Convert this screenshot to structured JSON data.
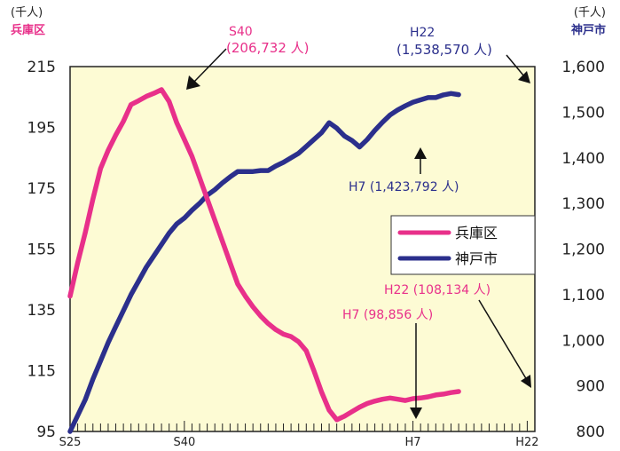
{
  "chart_data": {
    "type": "line",
    "left_axis": {
      "unit": "(千人)",
      "name": "兵庫区",
      "ticks": [
        "215",
        "195",
        "175",
        "155",
        "135",
        "115",
        "95"
      ],
      "ylim": [
        95,
        215
      ]
    },
    "right_axis": {
      "unit": "(千人)",
      "name": "神戸市",
      "ticks": [
        "1,600",
        "1,500",
        "1,400",
        "1,300",
        "1,200",
        "1,100",
        "1,000",
        "900",
        "800"
      ],
      "ylim": [
        800,
        1600
      ]
    },
    "x_tick_labels": [
      "S25",
      "S40",
      "H7",
      "H22"
    ],
    "x_tick_years": [
      1950,
      1965,
      1995,
      2010
    ],
    "xlim": [
      1950,
      2011
    ],
    "series": [
      {
        "name": "兵庫区",
        "axis": "left",
        "color": "#e8308a",
        "points": [
          [
            1950,
            139.5
          ],
          [
            1951,
            150.5
          ],
          [
            1952,
            160.5
          ],
          [
            1953,
            171.5
          ],
          [
            1954,
            181.5
          ],
          [
            1955,
            187.5
          ],
          [
            1956,
            192.5
          ],
          [
            1957,
            197.0
          ],
          [
            1958,
            202.5
          ],
          [
            1959,
            203.8
          ],
          [
            1960,
            205.2
          ],
          [
            1961,
            206.2
          ],
          [
            1962,
            207.4
          ],
          [
            1963,
            203.5
          ],
          [
            1964,
            196.5
          ],
          [
            1965,
            191.0
          ],
          [
            1966,
            185.5
          ],
          [
            1967,
            178.5
          ],
          [
            1968,
            171.5
          ],
          [
            1969,
            164.5
          ],
          [
            1970,
            157.5
          ],
          [
            1971,
            150.5
          ],
          [
            1972,
            143.5
          ],
          [
            1973,
            139.5
          ],
          [
            1974,
            136.0
          ],
          [
            1975,
            133.0
          ],
          [
            1976,
            130.5
          ],
          [
            1977,
            128.5
          ],
          [
            1978,
            127.0
          ],
          [
            1979,
            126.2
          ],
          [
            1980,
            124.5
          ],
          [
            1981,
            121.5
          ],
          [
            1982,
            115.0
          ],
          [
            1983,
            108.0
          ],
          [
            1984,
            102.0
          ],
          [
            1985,
            98.856
          ],
          [
            1986,
            100.0
          ],
          [
            1987,
            101.5
          ],
          [
            1988,
            103.0
          ],
          [
            1989,
            104.2
          ],
          [
            1990,
            105.0
          ],
          [
            1991,
            105.6
          ],
          [
            1992,
            106.0
          ],
          [
            1993,
            105.6
          ],
          [
            1994,
            105.2
          ],
          [
            1995,
            105.8
          ],
          [
            1996,
            106.0
          ],
          [
            1997,
            106.4
          ],
          [
            1998,
            107.0
          ],
          [
            1999,
            107.3
          ],
          [
            2000,
            107.8
          ],
          [
            2001,
            108.134
          ]
        ]
      },
      {
        "name": "神戸市",
        "axis": "right",
        "color": "#2b2f8c",
        "points": [
          [
            1950,
            800
          ],
          [
            1951,
            835
          ],
          [
            1952,
            870
          ],
          [
            1953,
            915
          ],
          [
            1954,
            955
          ],
          [
            1955,
            995
          ],
          [
            1956,
            1030
          ],
          [
            1957,
            1065
          ],
          [
            1958,
            1100
          ],
          [
            1959,
            1130
          ],
          [
            1960,
            1160
          ],
          [
            1961,
            1185
          ],
          [
            1962,
            1210
          ],
          [
            1963,
            1235
          ],
          [
            1964,
            1255
          ],
          [
            1965,
            1268
          ],
          [
            1966,
            1285
          ],
          [
            1967,
            1300
          ],
          [
            1968,
            1318
          ],
          [
            1969,
            1330
          ],
          [
            1970,
            1345
          ],
          [
            1971,
            1358
          ],
          [
            1972,
            1370
          ],
          [
            1973,
            1370
          ],
          [
            1974,
            1370
          ],
          [
            1975,
            1372
          ],
          [
            1976,
            1372
          ],
          [
            1977,
            1382
          ],
          [
            1978,
            1390
          ],
          [
            1979,
            1400
          ],
          [
            1980,
            1410
          ],
          [
            1981,
            1425
          ],
          [
            1982,
            1440
          ],
          [
            1983,
            1455
          ],
          [
            1984,
            1477
          ],
          [
            1985,
            1465
          ],
          [
            1986,
            1448
          ],
          [
            1987,
            1438
          ],
          [
            1988,
            1423.792
          ],
          [
            1989,
            1440
          ],
          [
            1990,
            1460
          ],
          [
            1991,
            1478
          ],
          [
            1992,
            1494
          ],
          [
            1993,
            1505
          ],
          [
            1994,
            1514
          ],
          [
            1995,
            1522
          ],
          [
            1996,
            1527
          ],
          [
            1997,
            1532
          ],
          [
            1998,
            1532
          ],
          [
            1999,
            1538
          ],
          [
            2000,
            1541
          ],
          [
            2001,
            1538.57
          ]
        ]
      }
    ],
    "annotations": [
      {
        "line1": "S40",
        "line2": "(206,732 人)",
        "color": "#e8308a"
      },
      {
        "line1": "H22",
        "line2": "(1,538,570 人)",
        "color": "#2b2f8c"
      },
      {
        "text": "H7 (1,423,792 人)",
        "color": "#2b2f8c"
      },
      {
        "text": "H7 (98,856 人)",
        "color": "#e8308a"
      },
      {
        "text": "H22 (108,134 人)",
        "color": "#e8308a"
      }
    ],
    "legend": {
      "placement": "right-middle",
      "entries": [
        "兵庫区",
        "神戸市"
      ]
    },
    "plot_background": "#fdfbd4"
  }
}
